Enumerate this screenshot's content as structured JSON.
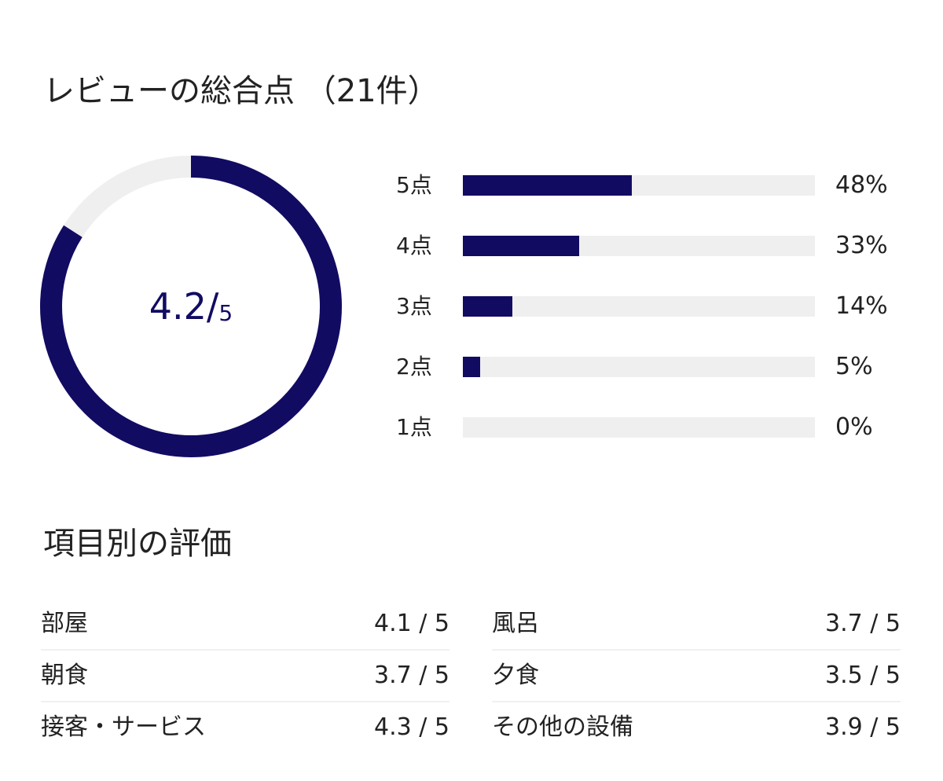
{
  "header": {
    "title": "レビューの総合点 （21件）"
  },
  "chart_data": [
    {
      "type": "pie",
      "subtype": "donut",
      "value": 4.2,
      "max": 5,
      "label_main": "4.2/",
      "label_max": "5",
      "colors": {
        "fill": "#120b62",
        "track": "#efefef"
      }
    },
    {
      "type": "bar",
      "orientation": "horizontal",
      "categories": [
        "5点",
        "4点",
        "3点",
        "2点",
        "1点"
      ],
      "values": [
        48,
        33,
        14,
        5,
        0
      ],
      "labels": [
        "48%",
        "33%",
        "14%",
        "5%",
        "0%"
      ],
      "xlim": [
        0,
        100
      ],
      "colors": {
        "fill": "#120b62",
        "track": "#efefef"
      }
    }
  ],
  "categories": {
    "title": "項目別の評価",
    "items": [
      {
        "name": "部屋",
        "value": "4.1 / 5"
      },
      {
        "name": "風呂",
        "value": "3.7 / 5"
      },
      {
        "name": "朝食",
        "value": "3.7 / 5"
      },
      {
        "name": "夕食",
        "value": "3.5 / 5"
      },
      {
        "name": "接客・サービス",
        "value": "4.3 / 5"
      },
      {
        "name": "その他の設備",
        "value": "3.9 / 5"
      }
    ]
  }
}
